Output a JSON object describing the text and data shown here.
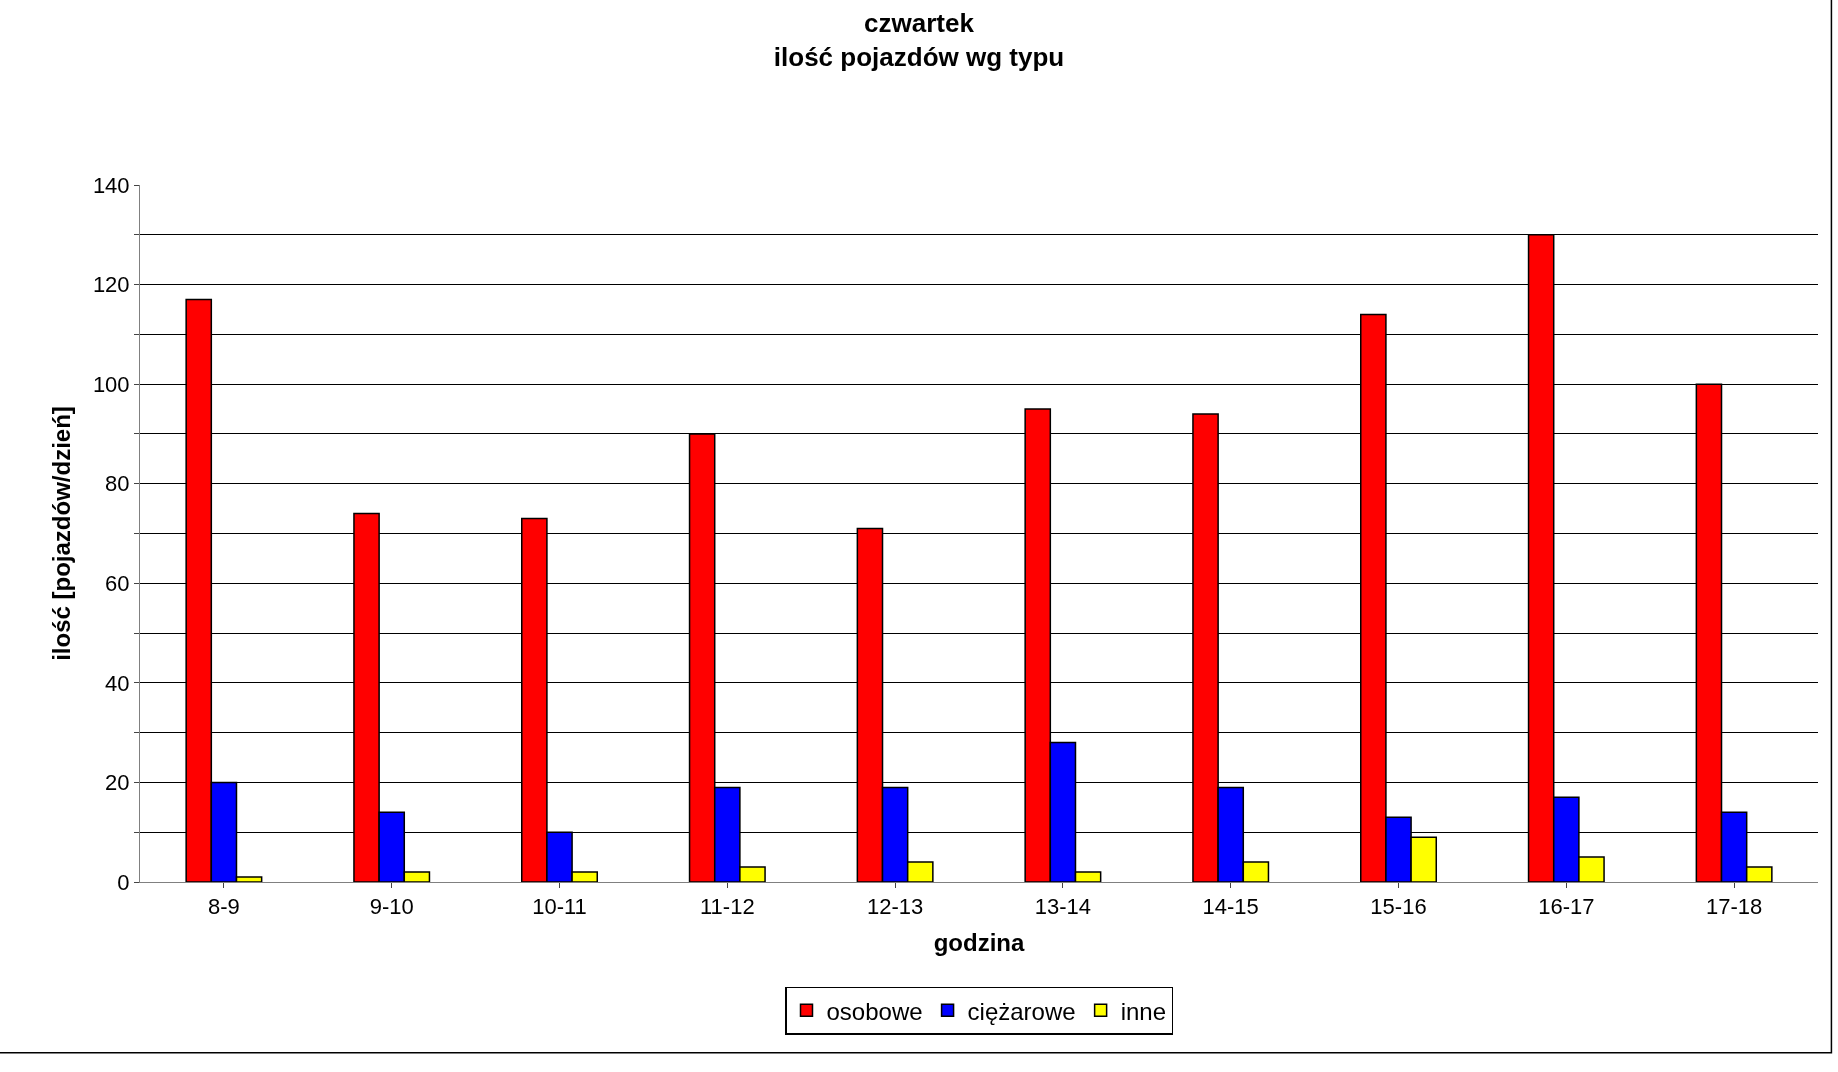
{
  "chart_data": {
    "type": "bar",
    "title": "czwartek\nilość pojazdów wg typu",
    "xlabel": "godzina",
    "ylabel": "ilość [pojazdów/dzień]",
    "categories": [
      "8-9",
      "9-10",
      "10-11",
      "11-12",
      "12-13",
      "13-14",
      "14-15",
      "15-16",
      "16-17",
      "17-18"
    ],
    "series": [
      {
        "name": "osobowe",
        "color": "#ff0000",
        "values": [
          117,
          74,
          73,
          90,
          71,
          95,
          94,
          114,
          130,
          100
        ]
      },
      {
        "name": "ciężarowe",
        "color": "#0000ff",
        "values": [
          20,
          14,
          10,
          19,
          19,
          28,
          19,
          13,
          17,
          14
        ]
      },
      {
        "name": "inne",
        "color": "#ffff00",
        "values": [
          1,
          2,
          2,
          3,
          4,
          2,
          4,
          9,
          5,
          3
        ]
      }
    ],
    "ylim": [
      0,
      140
    ],
    "yticks": [
      0,
      {
        "value": 10,
        "label": null
      },
      20,
      {
        "value": 30,
        "label": null
      },
      40,
      {
        "value": 50,
        "label": null
      },
      60,
      {
        "value": 70,
        "label": null
      },
      80,
      {
        "value": 90,
        "label": null
      },
      100,
      {
        "value": 110,
        "label": null
      },
      120,
      {
        "value": 130,
        "label": null
      },
      140
    ],
    "grid": "y",
    "legend": "bottom"
  }
}
